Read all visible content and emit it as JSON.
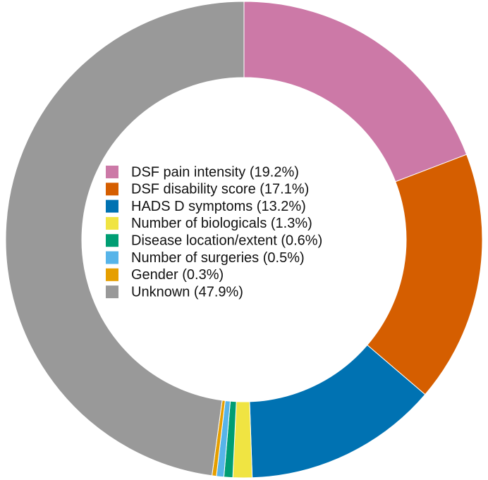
{
  "chart_data": {
    "type": "donut",
    "categories": [
      "DSF pain intensity (19.2%)",
      "DSF disability score (17.1%)",
      "HADS D symptoms (13.2%)",
      "Number of biologicals (1.3%)",
      "Disease location/extent (0.6%)",
      "Number of surgeries (0.5%)",
      "Gender (0.3%)",
      "Unknown (47.9%)"
    ],
    "values": [
      19.2,
      17.1,
      13.2,
      1.3,
      0.6,
      0.5,
      0.3,
      47.9
    ],
    "colors": [
      "#cc79a7",
      "#d55e00",
      "#0072b2",
      "#f0e442",
      "#009e73",
      "#56b4e9",
      "#e69f00",
      "#999999"
    ],
    "legend": "center"
  }
}
